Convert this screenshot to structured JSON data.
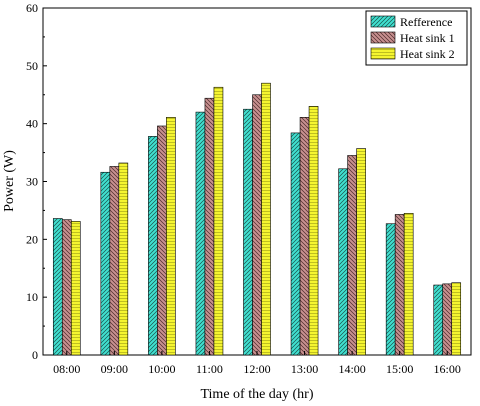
{
  "chart_data": {
    "type": "bar",
    "title": "",
    "xlabel": "Time of the day (hr)",
    "ylabel": "Power (W)",
    "ylim": [
      0,
      60
    ],
    "yticks": [
      "0",
      "10",
      "20",
      "30",
      "40",
      "50",
      "60"
    ],
    "categories": [
      "08:00",
      "09:00",
      "10:00",
      "11:00",
      "12:00",
      "13:00",
      "14:00",
      "15:00",
      "16:00"
    ],
    "series": [
      {
        "name": "Refference",
        "color": "#40e0d0",
        "pattern": "diagonal-hatch",
        "values": [
          23.6,
          31.6,
          37.8,
          42.0,
          42.5,
          38.4,
          32.2,
          22.7,
          12.1
        ]
      },
      {
        "name": "Heat sink 1",
        "color": "#c89090",
        "pattern": "diagonal-hatch",
        "values": [
          23.4,
          32.6,
          39.6,
          44.4,
          45.0,
          41.1,
          34.5,
          24.3,
          12.3
        ]
      },
      {
        "name": "Heat sink 2",
        "color": "#f5f530",
        "pattern": "horizontal-lines",
        "values": [
          23.1,
          33.2,
          41.1,
          46.3,
          47.0,
          43.0,
          35.7,
          24.5,
          12.5
        ]
      }
    ],
    "legend_position": "top-right",
    "grid": false
  }
}
